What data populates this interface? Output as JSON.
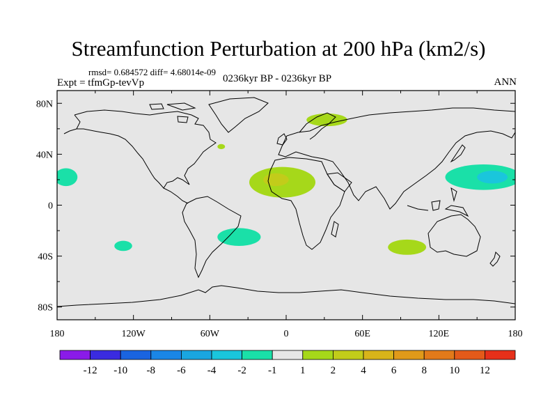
{
  "title": "Streamfunction Perturbation at 200 hPa (km2/s)",
  "stats_line": "rmsd= 0.684572 diff= 4.68014e-09",
  "period_label": "0236kyr BP - 0236kyr BP",
  "expt_label": "Expt = tfmGp-tevVp",
  "season_label": "ANN",
  "lat_labels": [
    {
      "label": "80N",
      "lat": 80
    },
    {
      "label": "40N",
      "lat": 40
    },
    {
      "label": "0",
      "lat": 0
    },
    {
      "label": "40S",
      "lat": -40
    },
    {
      "label": "80S",
      "lat": -80
    }
  ],
  "lon_labels": [
    {
      "label": "180",
      "lon": -180
    },
    {
      "label": "120W",
      "lon": -120
    },
    {
      "label": "60W",
      "lon": -60
    },
    {
      "label": "0",
      "lon": 0
    },
    {
      "label": "60E",
      "lon": 60
    },
    {
      "label": "120E",
      "lon": 120
    },
    {
      "label": "180",
      "lon": 180
    }
  ],
  "colorbar": {
    "colors": [
      "#8a1be8",
      "#3a2be0",
      "#1a64e0",
      "#1a86e6",
      "#1aa6e0",
      "#1ac6dc",
      "#1ae0a8",
      "#e6e6e6",
      "#a6d81a",
      "#c2cc1a",
      "#d8b41a",
      "#e09a1a",
      "#e27a1a",
      "#e45a1a",
      "#e6301a"
    ],
    "labels": [
      "-12",
      "-10",
      "-8",
      "-6",
      "-4",
      "-2",
      "-1",
      "1",
      "2",
      "4",
      "6",
      "8",
      "10",
      "12"
    ]
  },
  "anomalies": [
    {
      "name": "N Atlantic / N Africa positive",
      "lon": -3,
      "lat": 18,
      "rx": 26,
      "ry": 12,
      "color": "#a6d81a"
    },
    {
      "name": "N Atlantic / N Africa core",
      "lon": -8,
      "lat": 20,
      "rx": 10,
      "ry": 5,
      "color": "#c2cc1a"
    },
    {
      "name": "Scandinavia positive",
      "lon": 32,
      "lat": 67,
      "rx": 16,
      "ry": 5,
      "color": "#a6d81a"
    },
    {
      "name": "Small N America positive",
      "lon": -51,
      "lat": 46,
      "rx": 3,
      "ry": 2,
      "color": "#a6d81a"
    },
    {
      "name": "Indian Ocean positive",
      "lon": 95,
      "lat": -33,
      "rx": 15,
      "ry": 6,
      "color": "#a6d81a"
    },
    {
      "name": "W Pacific negative",
      "lon": 155,
      "lat": 22,
      "rx": 30,
      "ry": 10,
      "color": "#1ae0a8"
    },
    {
      "name": "W Pacific negative core",
      "lon": 162,
      "lat": 22,
      "rx": 12,
      "ry": 5,
      "color": "#1ac6dc"
    },
    {
      "name": "NE Pacific negative",
      "lon": -173,
      "lat": 22,
      "rx": 9,
      "ry": 7,
      "color": "#1ae0a8"
    },
    {
      "name": "S Atlantic negative",
      "lon": -37,
      "lat": -25,
      "rx": 17,
      "ry": 7,
      "color": "#1ae0a8"
    },
    {
      "name": "S Pacific negative",
      "lon": -128,
      "lat": -32,
      "rx": 7,
      "ry": 4,
      "color": "#1ae0a8"
    }
  ]
}
